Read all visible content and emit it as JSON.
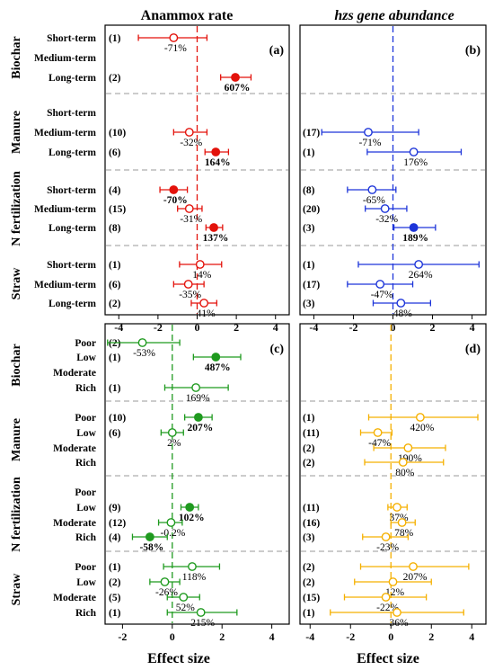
{
  "titles": {
    "left": "Anammox rate",
    "right": "hzs gene abundance"
  },
  "xlabel": "Effect size",
  "colors": {
    "red": "#e3120b",
    "blue": "#1d35d9",
    "green": "#1f9a1f",
    "orange": "#f5b000",
    "frame": "#000000",
    "separator": "#9a9a9a"
  },
  "chart_data": [
    {
      "panel": "a",
      "type": "scatter",
      "subtype": "forest plot (mean ± CI)",
      "title": "Anammox rate",
      "xlabel": "",
      "xlim": [
        -4.7,
        4.7
      ],
      "xticks": [
        -4,
        -2,
        0,
        2,
        4
      ],
      "color": "red",
      "groups": [
        {
          "name": "Biochar",
          "rows": [
            {
              "label": "Short-term",
              "n": "(1)",
              "est": -1.2,
              "lo": -3.0,
              "hi": 0.5,
              "pct": "-71%",
              "sig": false
            },
            {
              "label": "Medium-term",
              "n": "",
              "est": null,
              "lo": null,
              "hi": null,
              "pct": "",
              "sig": false
            },
            {
              "label": "Long-term",
              "n": "(2)",
              "est": 1.95,
              "lo": 1.2,
              "hi": 2.75,
              "pct": "607%",
              "sig": true
            }
          ]
        },
        {
          "name": "Manure",
          "rows": [
            {
              "label": "Short-term",
              "n": "",
              "est": null,
              "lo": null,
              "hi": null,
              "pct": "",
              "sig": false
            },
            {
              "label": "Medium-term",
              "n": "(10)",
              "est": -0.4,
              "lo": -1.2,
              "hi": 0.5,
              "pct": "-32%",
              "sig": false
            },
            {
              "label": "Long-term",
              "n": "(6)",
              "est": 0.95,
              "lo": 0.4,
              "hi": 1.6,
              "pct": "164%",
              "sig": true
            }
          ]
        },
        {
          "name": "N fertilization",
          "rows": [
            {
              "label": "Short-term",
              "n": "(4)",
              "est": -1.2,
              "lo": -1.9,
              "hi": -0.5,
              "pct": "-70%",
              "sig": true
            },
            {
              "label": "Medium-term",
              "n": "(15)",
              "est": -0.4,
              "lo": -1.0,
              "hi": 0.25,
              "pct": "-31%",
              "sig": false
            },
            {
              "label": "Long-term",
              "n": "(8)",
              "est": 0.85,
              "lo": 0.45,
              "hi": 1.3,
              "pct": "137%",
              "sig": true
            }
          ]
        },
        {
          "name": "Straw",
          "rows": [
            {
              "label": "Short-term",
              "n": "(1)",
              "est": 0.15,
              "lo": -0.9,
              "hi": 1.25,
              "pct": "14%",
              "sig": false
            },
            {
              "label": "Medium-term",
              "n": "(6)",
              "est": -0.45,
              "lo": -1.2,
              "hi": 0.35,
              "pct": "-35%",
              "sig": false
            },
            {
              "label": "Long-term",
              "n": "(2)",
              "est": 0.35,
              "lo": -0.3,
              "hi": 1.0,
              "pct": "41%",
              "sig": false
            }
          ]
        }
      ]
    },
    {
      "panel": "b",
      "type": "scatter",
      "subtype": "forest plot (mean ± CI)",
      "title": "hzs gene abundance",
      "xlabel": "",
      "xlim": [
        -4.7,
        4.7
      ],
      "xticks": [
        -4,
        -2,
        0,
        2,
        4
      ],
      "color": "blue",
      "groups": [
        {
          "name": "Biochar",
          "rows": [
            {
              "label": "Short-term",
              "n": "",
              "est": null,
              "lo": null,
              "hi": null,
              "pct": "",
              "sig": false
            },
            {
              "label": "Medium-term",
              "n": "",
              "est": null,
              "lo": null,
              "hi": null,
              "pct": "",
              "sig": false
            },
            {
              "label": "Long-term",
              "n": "",
              "est": null,
              "lo": null,
              "hi": null,
              "pct": "",
              "sig": false
            }
          ]
        },
        {
          "name": "Manure",
          "rows": [
            {
              "label": "Short-term",
              "n": "",
              "est": null,
              "lo": null,
              "hi": null,
              "pct": "",
              "sig": false
            },
            {
              "label": "Medium-term",
              "n": "(17)",
              "est": -1.25,
              "lo": -3.6,
              "hi": 1.3,
              "pct": "-71%",
              "sig": false
            },
            {
              "label": "Long-term",
              "n": "(1)",
              "est": 1.05,
              "lo": -1.3,
              "hi": 3.45,
              "pct": "176%",
              "sig": false
            }
          ]
        },
        {
          "name": "N fertilization",
          "rows": [
            {
              "label": "Short-term",
              "n": "(8)",
              "est": -1.05,
              "lo": -2.3,
              "hi": 0.15,
              "pct": "-65%",
              "sig": false
            },
            {
              "label": "Medium-term",
              "n": "(20)",
              "est": -0.4,
              "lo": -1.4,
              "hi": 0.7,
              "pct": "-32%",
              "sig": false
            },
            {
              "label": "Long-term",
              "n": "(3)",
              "est": 1.05,
              "lo": 0.05,
              "hi": 2.15,
              "pct": "189%",
              "sig": true
            }
          ]
        },
        {
          "name": "Straw",
          "rows": [
            {
              "label": "Short-term",
              "n": "(1)",
              "est": 1.3,
              "lo": -1.75,
              "hi": 4.35,
              "pct": "264%",
              "sig": false
            },
            {
              "label": "Medium-term",
              "n": "(17)",
              "est": -0.65,
              "lo": -2.3,
              "hi": 1.0,
              "pct": "-47%",
              "sig": false
            },
            {
              "label": "Long-term",
              "n": "(3)",
              "est": 0.4,
              "lo": -1.0,
              "hi": 1.9,
              "pct": "48%",
              "sig": false
            }
          ]
        }
      ]
    },
    {
      "panel": "c",
      "type": "scatter",
      "subtype": "forest plot (mean ± CI)",
      "title": "",
      "xlabel": "Effect size",
      "xlim": [
        -2.7,
        4.7
      ],
      "xticks": [
        -2,
        0,
        2,
        4
      ],
      "color": "green",
      "groups": [
        {
          "name": "Biochar",
          "rows": [
            {
              "label": "Poor",
              "n": "(2)",
              "est": -1.2,
              "lo": -2.6,
              "hi": 0.3,
              "pct": "-53%",
              "sig": false
            },
            {
              "label": "Low",
              "n": "(1)",
              "est": 1.75,
              "lo": 0.85,
              "hi": 2.75,
              "pct": "487%",
              "sig": true
            },
            {
              "label": "Moderate",
              "n": "",
              "est": null,
              "lo": null,
              "hi": null,
              "pct": "",
              "sig": false
            },
            {
              "label": "Rich",
              "n": "(1)",
              "est": 0.95,
              "lo": -0.3,
              "hi": 2.25,
              "pct": "169%",
              "sig": false
            }
          ]
        },
        {
          "name": "Manure",
          "rows": [
            {
              "label": "Poor",
              "n": "(10)",
              "est": 1.05,
              "lo": 0.5,
              "hi": 1.6,
              "pct": "207%",
              "sig": true
            },
            {
              "label": "Low",
              "n": "(6)",
              "est": 0.0,
              "lo": -0.45,
              "hi": 0.45,
              "pct": "2%",
              "sig": false
            },
            {
              "label": "Moderate",
              "n": "",
              "est": null,
              "lo": null,
              "hi": null,
              "pct": "",
              "sig": false
            },
            {
              "label": "Rich",
              "n": "",
              "est": null,
              "lo": null,
              "hi": null,
              "pct": "",
              "sig": false
            }
          ]
        },
        {
          "name": "N fertilization",
          "rows": [
            {
              "label": "Poor",
              "n": "",
              "est": null,
              "lo": null,
              "hi": null,
              "pct": "",
              "sig": false
            },
            {
              "label": "Low",
              "n": "(9)",
              "est": 0.7,
              "lo": 0.35,
              "hi": 1.05,
              "pct": "102%",
              "sig": true
            },
            {
              "label": "Moderate",
              "n": "(12)",
              "est": -0.05,
              "lo": -0.55,
              "hi": 0.4,
              "pct": "-0.2%",
              "sig": false
            },
            {
              "label": "Rich",
              "n": "(4)",
              "est": -0.9,
              "lo": -1.6,
              "hi": -0.2,
              "pct": "-58%",
              "sig": true
            }
          ]
        },
        {
          "name": "Straw",
          "rows": [
            {
              "label": "Poor",
              "n": "(1)",
              "est": 0.8,
              "lo": -0.35,
              "hi": 1.9,
              "pct": "118%",
              "sig": false
            },
            {
              "label": "Low",
              "n": "(2)",
              "est": -0.3,
              "lo": -0.9,
              "hi": 0.3,
              "pct": "-26%",
              "sig": false
            },
            {
              "label": "Moderate",
              "n": "(5)",
              "est": 0.45,
              "lo": -0.2,
              "hi": 1.1,
              "pct": "52%",
              "sig": false
            },
            {
              "label": "Rich",
              "n": "(1)",
              "est": 1.15,
              "lo": -0.2,
              "hi": 2.6,
              "pct": "215%",
              "sig": false
            }
          ]
        }
      ]
    },
    {
      "panel": "d",
      "type": "scatter",
      "subtype": "forest plot (mean ± CI)",
      "title": "",
      "xlabel": "Effect size",
      "xlim": [
        -4.5,
        4.7
      ],
      "xticks": [
        -4,
        -2,
        0,
        2,
        4
      ],
      "color": "orange",
      "groups": [
        {
          "name": "Biochar",
          "rows": [
            {
              "label": "Poor",
              "n": "",
              "est": null,
              "lo": null,
              "hi": null,
              "pct": "",
              "sig": false
            },
            {
              "label": "Low",
              "n": "",
              "est": null,
              "lo": null,
              "hi": null,
              "pct": "",
              "sig": false
            },
            {
              "label": "Moderate",
              "n": "",
              "est": null,
              "lo": null,
              "hi": null,
              "pct": "",
              "sig": false
            },
            {
              "label": "Rich",
              "n": "",
              "est": null,
              "lo": null,
              "hi": null,
              "pct": "",
              "sig": false
            }
          ]
        },
        {
          "name": "Manure",
          "rows": [
            {
              "label": "Poor",
              "n": "(1)",
              "est": 1.45,
              "lo": -1.1,
              "hi": 4.3,
              "pct": "420%",
              "sig": false
            },
            {
              "label": "Low",
              "n": "(11)",
              "est": -0.65,
              "lo": -1.5,
              "hi": 0.05,
              "pct": "-47%",
              "sig": false
            },
            {
              "label": "Moderate",
              "n": "(2)",
              "est": 0.85,
              "lo": -0.85,
              "hi": 2.7,
              "pct": "190%",
              "sig": false
            },
            {
              "label": "Rich",
              "n": "(2)",
              "est": 0.6,
              "lo": -1.3,
              "hi": 2.6,
              "pct": "80%",
              "sig": false
            }
          ]
        },
        {
          "name": "N fertilization",
          "rows": [
            {
              "label": "Poor",
              "n": "",
              "est": null,
              "lo": null,
              "hi": null,
              "pct": "",
              "sig": false
            },
            {
              "label": "Low",
              "n": "(11)",
              "est": 0.3,
              "lo": -0.15,
              "hi": 0.8,
              "pct": "37%",
              "sig": false
            },
            {
              "label": "Moderate",
              "n": "(16)",
              "est": 0.55,
              "lo": 0.0,
              "hi": 1.2,
              "pct": "78%",
              "sig": false
            },
            {
              "label": "Rich",
              "n": "(3)",
              "est": -0.25,
              "lo": -1.4,
              "hi": 0.85,
              "pct": "-23%",
              "sig": false
            }
          ]
        },
        {
          "name": "Straw",
          "rows": [
            {
              "label": "Poor",
              "n": "(2)",
              "est": 1.1,
              "lo": -1.5,
              "hi": 3.85,
              "pct": "207%",
              "sig": false
            },
            {
              "label": "Low",
              "n": "(2)",
              "est": 0.1,
              "lo": -1.8,
              "hi": 2.0,
              "pct": "12%",
              "sig": false
            },
            {
              "label": "Moderate",
              "n": "(15)",
              "est": -0.25,
              "lo": -2.3,
              "hi": 1.75,
              "pct": "-22%",
              "sig": false
            },
            {
              "label": "Rich",
              "n": "(1)",
              "est": 0.3,
              "lo": -3.0,
              "hi": 3.6,
              "pct": "36%",
              "sig": false
            }
          ]
        }
      ]
    }
  ]
}
